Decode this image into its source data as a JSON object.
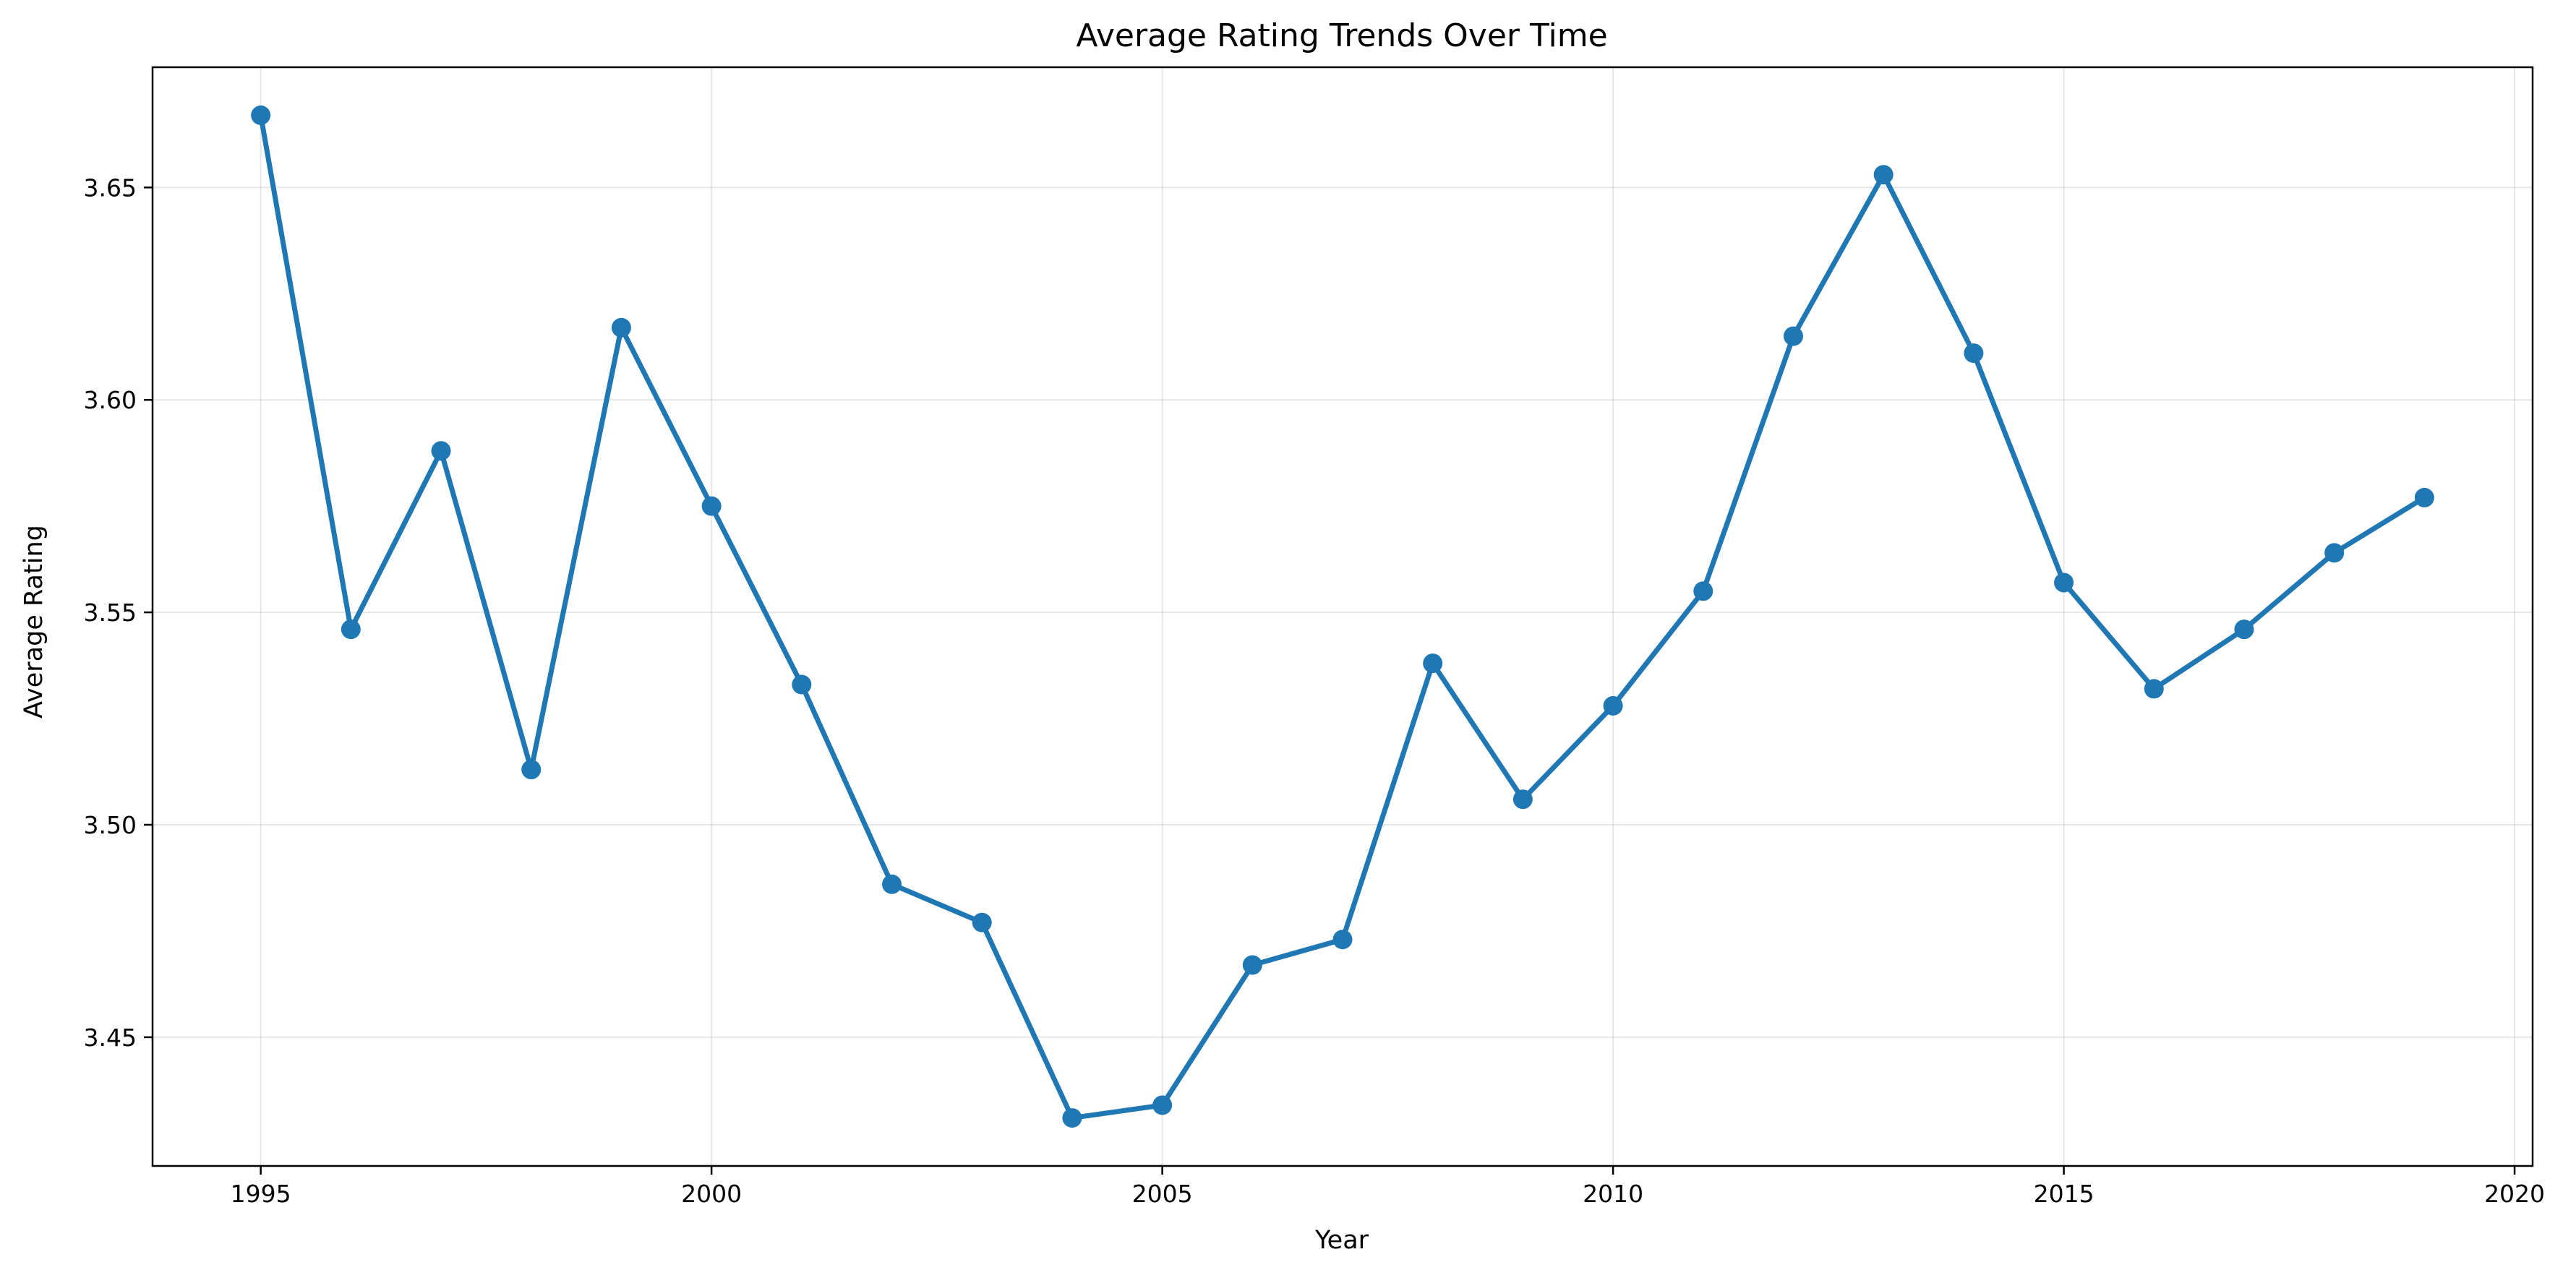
{
  "chart_data": {
    "type": "line",
    "title": "Average Rating Trends Over Time",
    "xlabel": "Year",
    "ylabel": "Average Rating",
    "xlim": [
      1993.8,
      2020.2
    ],
    "ylim": [
      3.4197,
      3.6783
    ],
    "xticks": [
      1995,
      2000,
      2005,
      2010,
      2015,
      2020
    ],
    "yticks": [
      3.45,
      3.5,
      3.55,
      3.6,
      3.65
    ],
    "ytick_labels": [
      "3.45",
      "3.50",
      "3.55",
      "3.60",
      "3.65"
    ],
    "grid": true,
    "color": "#1f77b4",
    "x": [
      1995,
      1996,
      1997,
      1998,
      1999,
      2000,
      2001,
      2002,
      2003,
      2004,
      2005,
      2006,
      2007,
      2008,
      2009,
      2010,
      2011,
      2012,
      2013,
      2014,
      2015,
      2016,
      2017,
      2018,
      2019
    ],
    "y": [
      3.667,
      3.546,
      3.588,
      3.513,
      3.617,
      3.575,
      3.533,
      3.486,
      3.477,
      3.431,
      3.434,
      3.467,
      3.473,
      3.538,
      3.506,
      3.528,
      3.555,
      3.615,
      3.653,
      3.611,
      3.557,
      3.532,
      3.546,
      3.564,
      3.577
    ]
  }
}
